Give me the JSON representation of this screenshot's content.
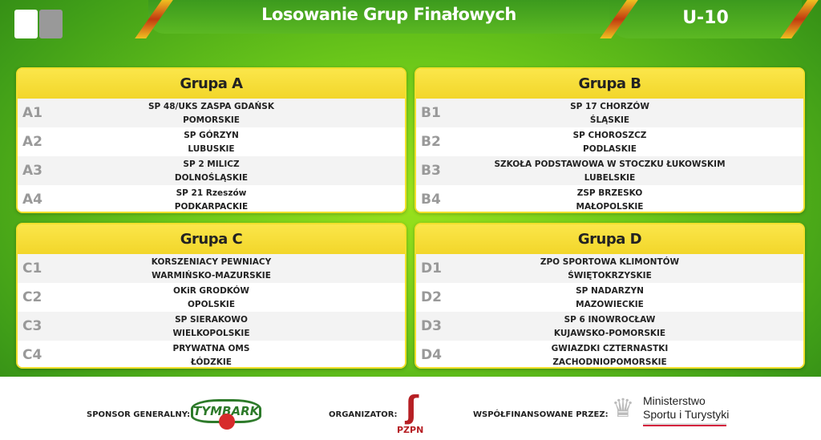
{
  "header": {
    "title": "Losowanie Grup Finałowych",
    "category": "U-10"
  },
  "groups": [
    {
      "title": "Grupa A",
      "teams": [
        {
          "pos": "A1",
          "name": "SP 48/UKS ZASPA GDAŃSK",
          "region": "POMORSKIE"
        },
        {
          "pos": "A2",
          "name": "SP GÓRZYN",
          "region": "LUBUSKIE"
        },
        {
          "pos": "A3",
          "name": "SP 2 MILICZ",
          "region": "DOLNOŚLĄSKIE"
        },
        {
          "pos": "A4",
          "name": "SP 21 Rzeszów",
          "region": "PODKARPACKIE"
        }
      ]
    },
    {
      "title": "Grupa B",
      "teams": [
        {
          "pos": "B1",
          "name": "SP 17 CHORZÓW",
          "region": "ŚLĄSKIE"
        },
        {
          "pos": "B2",
          "name": "SP CHOROSZCZ",
          "region": "PODLASKIE"
        },
        {
          "pos": "B3",
          "name": "SZKOŁA PODSTAWOWA W STOCZKU ŁUKOWSKIM",
          "region": "LUBELSKIE"
        },
        {
          "pos": "B4",
          "name": "ZSP BRZESKO",
          "region": "MAŁOPOLSKIE"
        }
      ]
    },
    {
      "title": "Grupa C",
      "teams": [
        {
          "pos": "C1",
          "name": "KORSZENIACY PEWNIACY",
          "region": "WARMIŃSKO-MAZURSKIE"
        },
        {
          "pos": "C2",
          "name": "OKiR GRODKÓW",
          "region": "OPOLSKIE"
        },
        {
          "pos": "C3",
          "name": "SP SIERAKOWO",
          "region": "WIELKOPOLSKIE"
        },
        {
          "pos": "C4",
          "name": "PRYWATNA OMS",
          "region": "ŁÓDZKIE"
        }
      ]
    },
    {
      "title": "Grupa D",
      "teams": [
        {
          "pos": "D1",
          "name": "ZPO SPORTOWA KLIMONTÓW",
          "region": "ŚWIĘTOKRZYSKIE"
        },
        {
          "pos": "D2",
          "name": "SP NADARZYN",
          "region": "MAZOWIECKIE"
        },
        {
          "pos": "D3",
          "name": "SP 6 INOWROCŁAW",
          "region": "KUJAWSKO-POMORSKIE"
        },
        {
          "pos": "D4",
          "name": "GWIAZDKI CZTERNASTKI",
          "region": "ZACHODNIOPOMORSKIE"
        }
      ]
    }
  ],
  "footer": {
    "sponsor_label": "SPONSOR GENERALNY:",
    "sponsor_logo": "TYMBARK",
    "organizer_label": "ORGANIZATOR:",
    "organizer_logo": "PZPN",
    "cofinanced_label": "WSPÓŁFINANSOWANE PRZEZ:",
    "ministry_line1": "Ministerstwo",
    "ministry_line2": "Sportu i Turystyki"
  },
  "colors": {
    "header_yellow": "#f5dc30",
    "bg_green": "#6cc81a",
    "position_gray": "#999999",
    "pzpn_red": "#b61f24"
  }
}
